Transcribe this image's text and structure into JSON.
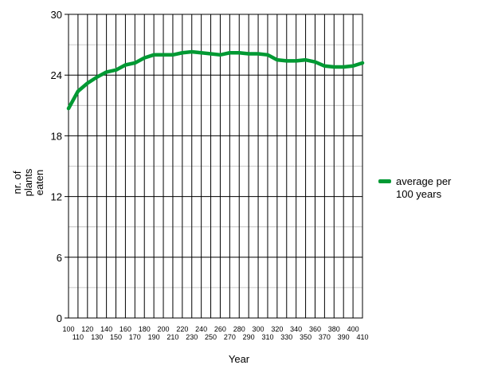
{
  "chart_data": {
    "type": "line",
    "xlabel": "Year",
    "ylabel_lines": [
      "nr. of",
      "plants",
      "eaten"
    ],
    "ylim": [
      0,
      30
    ],
    "yticks": [
      0,
      6,
      12,
      18,
      24,
      30
    ],
    "xlim": [
      100,
      410
    ],
    "xticks": [
      100,
      110,
      120,
      130,
      140,
      150,
      160,
      170,
      180,
      190,
      200,
      210,
      220,
      230,
      240,
      250,
      260,
      270,
      280,
      290,
      300,
      310,
      320,
      330,
      340,
      350,
      360,
      370,
      380,
      390,
      400,
      410
    ],
    "grid": true,
    "legend_position": "right",
    "series": [
      {
        "name_lines": [
          "average per",
          "100 years"
        ],
        "color": "#009933",
        "x": [
          100,
          110,
          120,
          130,
          140,
          150,
          160,
          170,
          180,
          190,
          200,
          210,
          220,
          230,
          240,
          250,
          260,
          270,
          280,
          290,
          300,
          310,
          320,
          330,
          340,
          350,
          360,
          370,
          380,
          390,
          400,
          410
        ],
        "y": [
          20.7,
          22.4,
          23.2,
          23.8,
          24.3,
          24.5,
          25.0,
          25.2,
          25.7,
          26.0,
          26.0,
          26.0,
          26.2,
          26.3,
          26.2,
          26.1,
          26.0,
          26.2,
          26.2,
          26.1,
          26.1,
          26.0,
          25.5,
          25.4,
          25.4,
          25.5,
          25.3,
          24.9,
          24.8,
          24.8,
          24.9,
          25.2
        ]
      }
    ]
  }
}
